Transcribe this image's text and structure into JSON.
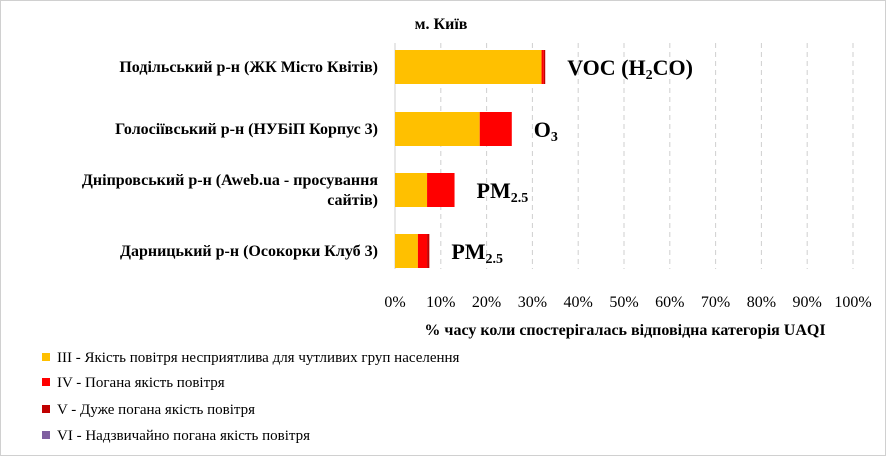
{
  "chart_data": {
    "type": "bar",
    "orientation": "horizontal",
    "stacked": true,
    "title": "м. Київ",
    "xlabel": "% часу коли спостерігалась відповідна категорія UAQI",
    "ylabel": "",
    "xlim": [
      0,
      100
    ],
    "x_ticks": [
      "0%",
      "10%",
      "20%",
      "30%",
      "40%",
      "50%",
      "60%",
      "70%",
      "80%",
      "90%",
      "100%"
    ],
    "grid": "vertical-dashed",
    "legend_position": "bottom-left",
    "categories": [
      [
        "Подільський р-н (ЖК Місто Квітів)"
      ],
      [
        "Голосіївський р-н (НУБіП Корпус 3)"
      ],
      [
        "Дніпровський р-н (Aweb.ua - просування",
        "сайтів)"
      ],
      [
        "Дарницький р-н (Осокорки Клуб 3)"
      ]
    ],
    "pollutants": [
      {
        "main": "VOC (H",
        "sub": "2",
        "tail": "CO)"
      },
      {
        "main": "O",
        "sub": "3",
        "tail": ""
      },
      {
        "main": "PM",
        "sub": "2.5",
        "tail": ""
      },
      {
        "main": "PM",
        "sub": "2.5",
        "tail": ""
      }
    ],
    "series": [
      {
        "name": "III - Якість повітря  несприятлива  для чутливих  груп  населення",
        "color": "#FFC000",
        "values": [
          32,
          18.5,
          7,
          5
        ]
      },
      {
        "name": "IV - Погана якість повітря",
        "color": "#FF0000",
        "values": [
          0.5,
          7,
          6,
          2
        ]
      },
      {
        "name": "V - Дуже погана  якість повітря",
        "color": "#C00000",
        "values": [
          0.3,
          0,
          0,
          0.5
        ]
      },
      {
        "name": "VI - Надзвичайно  погана  якість повітря",
        "color": "#7F5FA0",
        "values": [
          0,
          0,
          0,
          0
        ]
      }
    ]
  }
}
